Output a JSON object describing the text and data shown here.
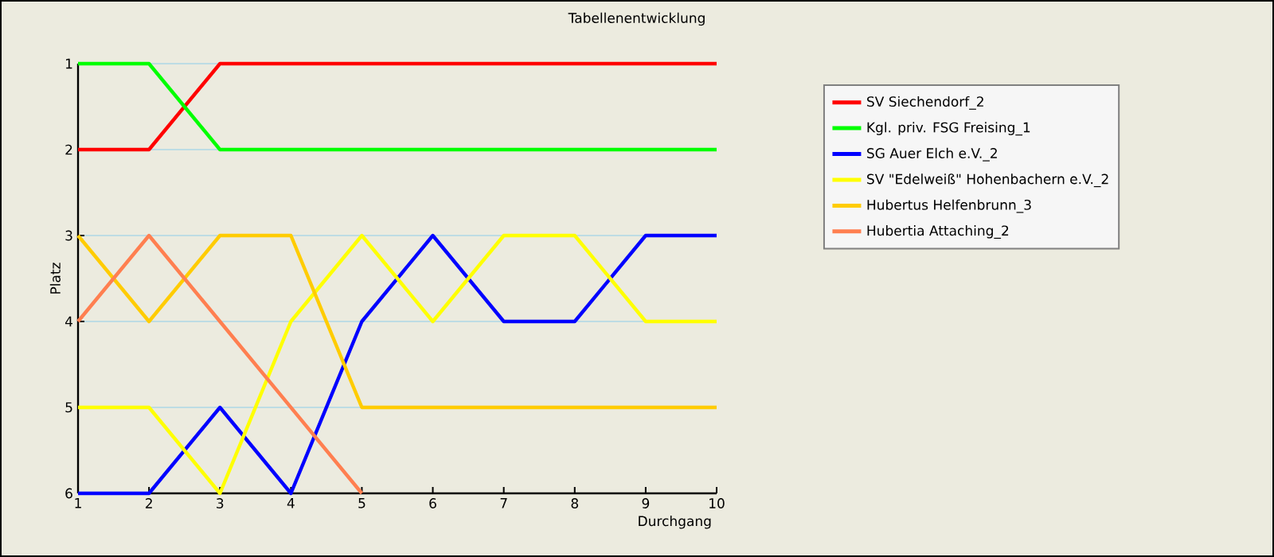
{
  "chart_data": {
    "type": "line",
    "title": "Tabellenentwicklung",
    "xlabel": "Durchgang",
    "ylabel": "Platz",
    "x": [
      1,
      2,
      3,
      4,
      5,
      6,
      7,
      8,
      9,
      10
    ],
    "series": [
      {
        "name": "SV Siechendorf_2",
        "color": "#ff0000",
        "values": [
          2,
          2,
          1,
          1,
          1,
          1,
          1,
          1,
          1,
          1
        ]
      },
      {
        "name": "Kgl. priv. FSG Freising_1",
        "color": "#00ff00",
        "values": [
          1,
          1,
          2,
          2,
          2,
          2,
          2,
          2,
          2,
          2
        ]
      },
      {
        "name": "SG Auer Elch e.V._2",
        "color": "#0000ff",
        "values": [
          6,
          6,
          5,
          6,
          4,
          3,
          4,
          4,
          3,
          3
        ]
      },
      {
        "name": "SV \"Edelweiß\" Hohenbachern e.V._2",
        "color": "#ffff00",
        "values": [
          5,
          5,
          6,
          4,
          3,
          4,
          3,
          3,
          4,
          4
        ]
      },
      {
        "name": "Hubertus Helfenbrunn_3",
        "color": "#ffcc00",
        "values": [
          3,
          4,
          3,
          3,
          5,
          5,
          5,
          5,
          5,
          5
        ]
      },
      {
        "name": "Hubertia Attaching_2",
        "color": "#ff7f50",
        "values": [
          4,
          3,
          4,
          5,
          6,
          null,
          null,
          null,
          null,
          null
        ]
      }
    ],
    "xlim": [
      1,
      10
    ],
    "xticks": [
      1,
      2,
      3,
      4,
      5,
      6,
      7,
      8,
      9,
      10
    ],
    "ylim": [
      6,
      1
    ],
    "yticks": [
      1,
      2,
      3,
      4,
      5,
      6
    ],
    "grid": "y",
    "legend": "right",
    "marker": "none",
    "line_style": "solid"
  }
}
